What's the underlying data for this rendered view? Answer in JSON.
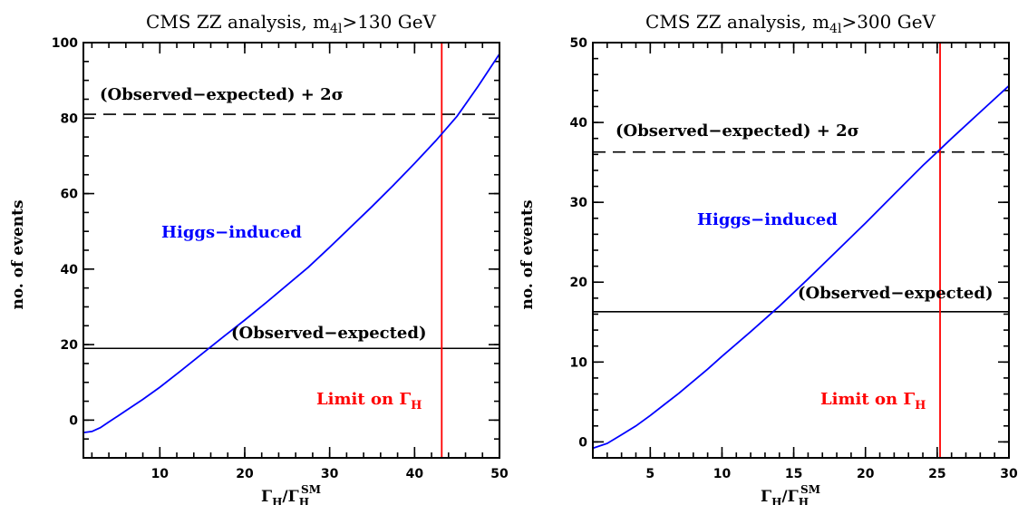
{
  "chart_data": [
    {
      "type": "line",
      "title": {
        "pre": "CMS ZZ analysis, m",
        "sub": "4l",
        "post": ">130 GeV"
      },
      "xlabel": {
        "base": "Γ",
        "sub": "H",
        "mid": "/Γ",
        "sub2": "H",
        "sup2": "SM"
      },
      "ylabel": "no. of events",
      "xlim": [
        1,
        50
      ],
      "ylim": [
        -10,
        100
      ],
      "xticks": [
        10,
        20,
        30,
        40,
        50
      ],
      "yticks": [
        0,
        20,
        40,
        60,
        80,
        100
      ],
      "x_minor_step": 2,
      "y_minor_step": 5,
      "series": [
        {
          "name": "Higgs-induced",
          "color": "#0000ff",
          "x": [
            1,
            2,
            3,
            4,
            5,
            6,
            8,
            10,
            12.5,
            15,
            17.5,
            20,
            22.5,
            25,
            27.5,
            30,
            32.5,
            35,
            37.5,
            40,
            42.5,
            45,
            47.5,
            50
          ],
          "y": [
            -3.3,
            -3.0,
            -2.0,
            -0.5,
            1.0,
            2.5,
            5.5,
            8.7,
            13.1,
            17.6,
            22.1,
            26.5,
            31.1,
            35.8,
            40.5,
            45.8,
            51.2,
            56.6,
            62.2,
            68.0,
            74.0,
            80.5,
            88.5,
            97.0
          ]
        }
      ],
      "hlines": [
        {
          "label": "(Observed−expected) + 2σ",
          "y": 81,
          "style": "dashed",
          "color": "#000000"
        },
        {
          "label": "(Observed−expected)",
          "y": 19,
          "style": "solid",
          "color": "#000000"
        }
      ],
      "vline": {
        "x": 43.2,
        "color": "#ff0000"
      },
      "annotations": {
        "higgs": {
          "text": "Higgs−induced",
          "color": "#0000ff"
        },
        "limit": {
          "text": "Limit on Γ",
          "sub": "H",
          "color": "#ff0000"
        }
      }
    },
    {
      "type": "line",
      "title": {
        "pre": "CMS ZZ analysis, m",
        "sub": "4l",
        "post": ">300 GeV"
      },
      "xlabel": {
        "base": "Γ",
        "sub": "H",
        "mid": "/Γ",
        "sub2": "H",
        "sup2": "SM"
      },
      "ylabel": "no. of events",
      "xlim": [
        1,
        30
      ],
      "ylim": [
        -2,
        50
      ],
      "xticks": [
        5,
        10,
        15,
        20,
        25,
        30
      ],
      "yticks": [
        0,
        10,
        20,
        30,
        40,
        50
      ],
      "x_minor_step": 1,
      "y_minor_step": 2,
      "series": [
        {
          "name": "Higgs-induced",
          "color": "#0000ff",
          "x": [
            1,
            2,
            3,
            4,
            5,
            6,
            7,
            8,
            9,
            10,
            12,
            14,
            16,
            18,
            20,
            22,
            24,
            25,
            26,
            28,
            30
          ],
          "y": [
            -0.8,
            -0.2,
            0.9,
            2.0,
            3.3,
            4.7,
            6.1,
            7.6,
            9.1,
            10.7,
            13.8,
            17.0,
            20.4,
            23.9,
            27.4,
            31.0,
            34.6,
            36.3,
            38.0,
            41.3,
            44.6
          ]
        }
      ],
      "hlines": [
        {
          "label": "(Observed−expected) + 2σ",
          "y": 36.3,
          "style": "dashed",
          "color": "#000000"
        },
        {
          "label": "(Observed−expected)",
          "y": 16.3,
          "style": "solid",
          "color": "#000000"
        }
      ],
      "vline": {
        "x": 25.2,
        "color": "#ff0000"
      },
      "annotations": {
        "higgs": {
          "text": "Higgs−induced",
          "color": "#0000ff"
        },
        "limit": {
          "text": "Limit on Γ",
          "sub": "H",
          "color": "#ff0000"
        }
      }
    }
  ]
}
